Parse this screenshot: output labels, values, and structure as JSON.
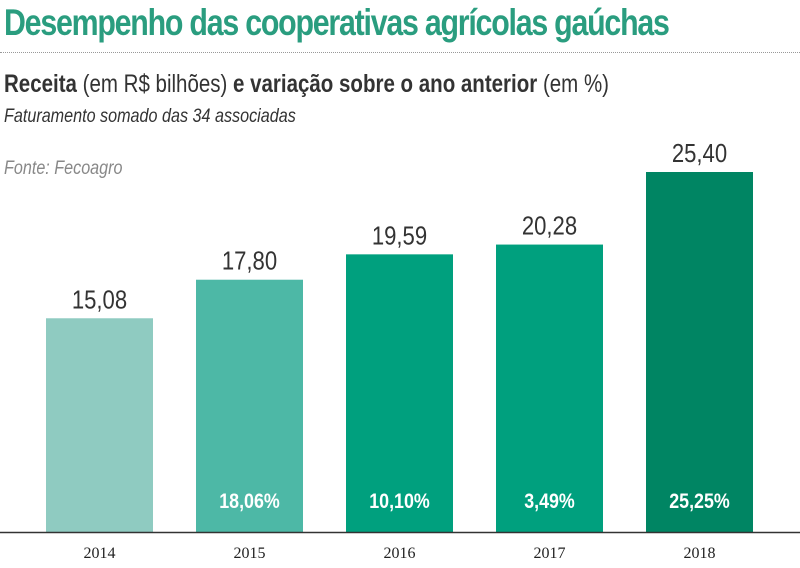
{
  "header": {
    "title": "Desempenho das cooperativas agrícolas gaúchas",
    "sub_bold1": "Receita",
    "sub_reg1": " (em R$ bilhões) ",
    "sub_bold2": "e variação sobre o ano anterior",
    "sub_reg2": " (em %)",
    "note": "Faturamento somado das 34 associadas",
    "source": "Fonte: Fecoagro"
  },
  "chart_data": {
    "type": "bar",
    "title": "Receita (em R$ bilhões) e variação sobre o ano anterior (em %)",
    "categories": [
      "2014",
      "2015",
      "2016",
      "2017",
      "2018"
    ],
    "values": [
      15.08,
      17.8,
      19.59,
      20.28,
      25.4
    ],
    "value_labels": [
      "15,08",
      "17,80",
      "19,59",
      "20,28",
      "25,40"
    ],
    "variation_labels": [
      "",
      "18,06%",
      "10,10%",
      "3,49%",
      "25,25%"
    ],
    "variation": [
      null,
      18.06,
      10.1,
      3.49,
      25.25
    ],
    "colors": [
      "#8fcbc1",
      "#4db8a6",
      "#00a07e",
      "#00a07e",
      "#008563"
    ],
    "ylabel": "Receita (R$ bilhões)",
    "xlabel": "",
    "ylim": [
      0,
      25.4
    ],
    "grid": false
  }
}
